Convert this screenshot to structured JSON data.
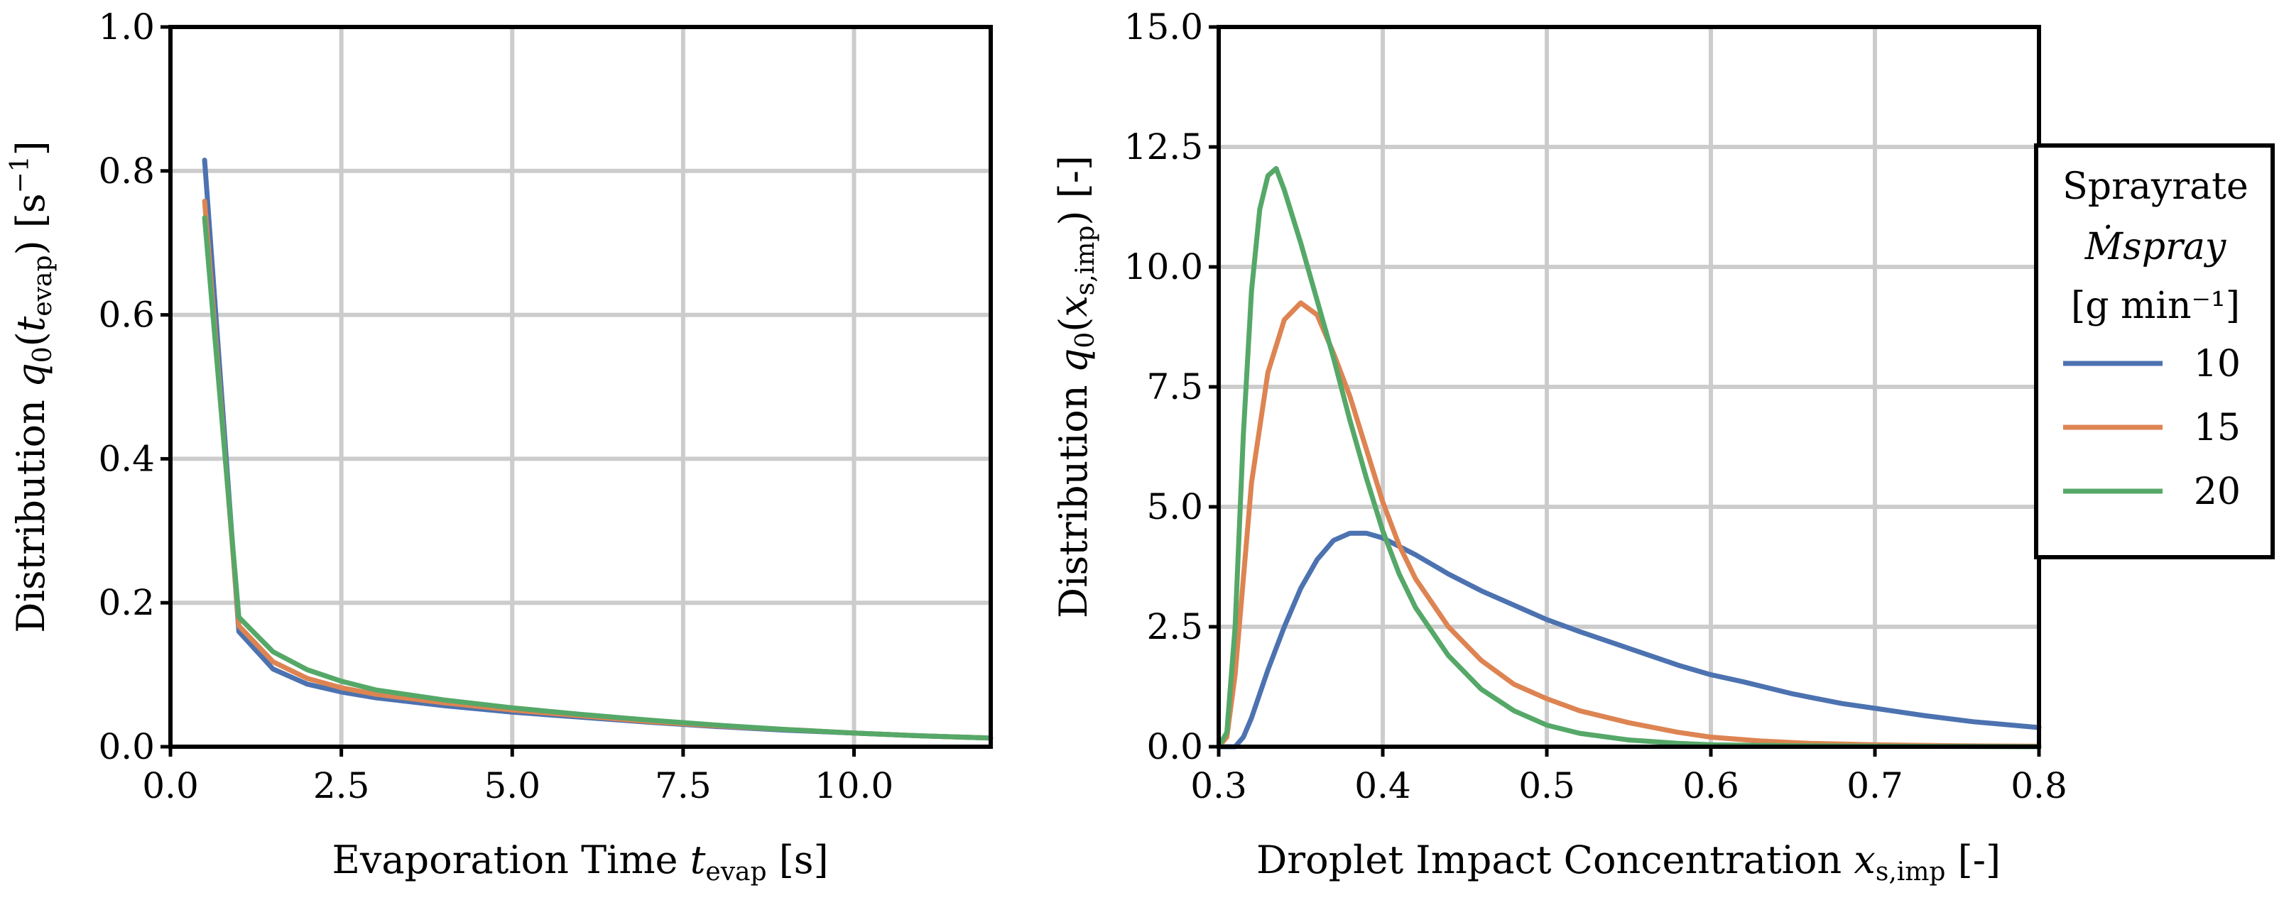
{
  "chart_data": [
    {
      "type": "line",
      "xlabel": "Evaporation Time t_evap [s]",
      "ylabel": "Distribution q0(t_evap) [s^-1]",
      "xlim": [
        0,
        12
      ],
      "ylim": [
        0,
        1.0
      ],
      "xticks": [
        "0.0",
        "2.5",
        "5.0",
        "7.5",
        "10.0"
      ],
      "xtick_values": [
        0,
        2.5,
        5,
        7.5,
        10
      ],
      "yticks": [
        "0.0",
        "0.2",
        "0.4",
        "0.6",
        "0.8",
        "1.0"
      ],
      "ytick_values": [
        0,
        0.2,
        0.4,
        0.6,
        0.8,
        1.0
      ],
      "grid": true,
      "x": [
        0.5,
        1,
        1.5,
        2,
        2.5,
        3,
        4,
        5,
        6,
        7,
        8,
        9,
        10,
        11,
        12
      ],
      "series": [
        {
          "name": "10",
          "color": "#4c72b0",
          "values": [
            0.815,
            0.16,
            0.108,
            0.087,
            0.076,
            0.068,
            0.057,
            0.048,
            0.041,
            0.034,
            0.028,
            0.023,
            0.019,
            0.015,
            0.012
          ]
        },
        {
          "name": "15",
          "color": "#dd8452",
          "values": [
            0.758,
            0.168,
            0.118,
            0.095,
            0.082,
            0.073,
            0.061,
            0.051,
            0.043,
            0.035,
            0.029,
            0.024,
            0.019,
            0.015,
            0.012
          ]
        },
        {
          "name": "20",
          "color": "#55a868",
          "values": [
            0.735,
            0.18,
            0.132,
            0.107,
            0.091,
            0.079,
            0.065,
            0.054,
            0.045,
            0.037,
            0.03,
            0.024,
            0.019,
            0.015,
            0.012
          ]
        }
      ]
    },
    {
      "type": "line",
      "xlabel": "Droplet Impact Concentration x_s,imp [-]",
      "ylabel": "Distribution q0(x_s,imp) [-]",
      "xlim": [
        0.3,
        0.8
      ],
      "ylim": [
        0,
        15.0
      ],
      "xticks": [
        "0.3",
        "0.4",
        "0.5",
        "0.6",
        "0.7",
        "0.8"
      ],
      "xtick_values": [
        0.3,
        0.4,
        0.5,
        0.6,
        0.7,
        0.8
      ],
      "yticks": [
        "0.0",
        "2.5",
        "5.0",
        "7.5",
        "10.0",
        "12.5",
        "15.0"
      ],
      "ytick_values": [
        0,
        2.5,
        5,
        7.5,
        10,
        12.5,
        15
      ],
      "grid": true,
      "series": [
        {
          "name": "10",
          "color": "#4c72b0",
          "x": [
            0.3,
            0.31,
            0.315,
            0.32,
            0.33,
            0.34,
            0.35,
            0.36,
            0.37,
            0.38,
            0.39,
            0.4,
            0.42,
            0.44,
            0.46,
            0.48,
            0.5,
            0.52,
            0.55,
            0.58,
            0.6,
            0.62,
            0.65,
            0.68,
            0.7,
            0.73,
            0.76,
            0.8
          ],
          "values": [
            0,
            0,
            0.2,
            0.6,
            1.6,
            2.5,
            3.3,
            3.9,
            4.3,
            4.45,
            4.45,
            4.35,
            4.0,
            3.6,
            3.25,
            2.95,
            2.65,
            2.4,
            2.05,
            1.7,
            1.5,
            1.35,
            1.1,
            0.9,
            0.8,
            0.65,
            0.52,
            0.4
          ]
        },
        {
          "name": "15",
          "color": "#dd8452",
          "x": [
            0.3,
            0.305,
            0.31,
            0.315,
            0.32,
            0.33,
            0.34,
            0.35,
            0.36,
            0.37,
            0.38,
            0.39,
            0.4,
            0.41,
            0.42,
            0.44,
            0.46,
            0.48,
            0.5,
            0.52,
            0.55,
            0.58,
            0.6,
            0.63,
            0.66,
            0.7,
            0.75,
            0.8
          ],
          "values": [
            0,
            0.2,
            1.5,
            3.5,
            5.5,
            7.8,
            8.9,
            9.25,
            9.0,
            8.2,
            7.3,
            6.2,
            5.1,
            4.2,
            3.5,
            2.5,
            1.8,
            1.3,
            1.0,
            0.75,
            0.5,
            0.3,
            0.2,
            0.12,
            0.07,
            0.04,
            0.02,
            0.01
          ]
        },
        {
          "name": "20",
          "color": "#55a868",
          "x": [
            0.3,
            0.305,
            0.31,
            0.315,
            0.32,
            0.325,
            0.33,
            0.335,
            0.34,
            0.35,
            0.36,
            0.37,
            0.38,
            0.39,
            0.4,
            0.41,
            0.42,
            0.44,
            0.46,
            0.48,
            0.5,
            0.52,
            0.55,
            0.58,
            0.6,
            0.65,
            0.7,
            0.8
          ],
          "values": [
            0,
            0.3,
            2.5,
            6.5,
            9.5,
            11.2,
            11.9,
            12.05,
            11.6,
            10.5,
            9.3,
            8.1,
            6.8,
            5.6,
            4.5,
            3.6,
            2.9,
            1.9,
            1.2,
            0.75,
            0.45,
            0.28,
            0.14,
            0.07,
            0.04,
            0.02,
            0.01,
            0.0
          ]
        }
      ],
      "legend": {
        "placement": "outside-right",
        "title_lines": [
          "Sprayrate",
          "Ṁspray",
          "[g min⁻¹]"
        ],
        "entries": [
          "10",
          "15",
          "20"
        ]
      }
    }
  ]
}
